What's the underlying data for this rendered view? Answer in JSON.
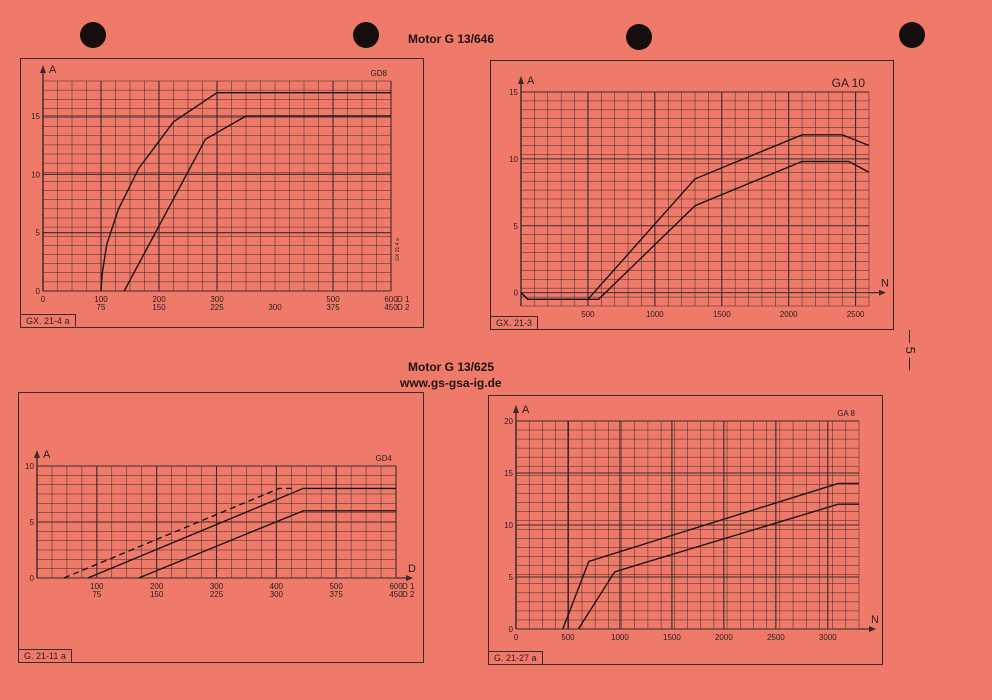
{
  "page": {
    "heading_top": "Motor G 13/646",
    "heading_bottom": "Motor G 13/625",
    "url": "www.gs-gsa-ig.de",
    "page_number": "— 5 —"
  },
  "chart_data": [
    {
      "id": "gx-21-4a",
      "type": "line",
      "title": "GD8",
      "tag": "GX. 21-4 a",
      "side_note": "GX 21-4 a",
      "ylabel": "A",
      "xlabel": "",
      "xlim": [
        0,
        600
      ],
      "ylim": [
        0,
        18
      ],
      "y_ticks": [
        0,
        5,
        10,
        15
      ],
      "x_ticks": [
        0,
        100,
        200,
        300,
        500,
        600
      ],
      "x_ticks2": [
        null,
        75,
        150,
        225,
        300,
        375,
        450
      ],
      "x_ticks2_at": [
        0,
        100,
        200,
        300,
        400,
        500,
        600
      ],
      "x_tick_label_1": "D 1",
      "x_tick_label_2": "D 2",
      "grid": true,
      "series": [
        {
          "dash": false,
          "points": [
            [
              100,
              0
            ],
            [
              102,
              1.5
            ],
            [
              110,
              4
            ],
            [
              130,
              7
            ],
            [
              165,
              10.5
            ],
            [
              225,
              14.5
            ],
            [
              300,
              17
            ],
            [
              600,
              17
            ]
          ]
        },
        {
          "dash": false,
          "points": [
            [
              140,
              0
            ],
            [
              280,
              13
            ],
            [
              350,
              15
            ],
            [
              600,
              15
            ]
          ]
        }
      ]
    },
    {
      "id": "gx-21-3",
      "type": "line",
      "title": "GA 10",
      "tag": "GX. 21-3",
      "ylabel": "A",
      "xlabel": "N",
      "xlim": [
        0,
        2600
      ],
      "ylim": [
        -1,
        15
      ],
      "y_ticks": [
        0,
        5,
        10,
        15
      ],
      "x_ticks": [
        500,
        1000,
        1500,
        2000,
        2500
      ],
      "grid": true,
      "series": [
        {
          "dash": false,
          "points": [
            [
              0,
              0
            ],
            [
              50,
              -0.5
            ],
            [
              500,
              -0.5
            ],
            [
              1300,
              8.5
            ],
            [
              2100,
              11.8
            ],
            [
              2400,
              11.8
            ],
            [
              2600,
              11
            ]
          ]
        },
        {
          "dash": false,
          "points": [
            [
              0,
              0
            ],
            [
              50,
              -0.5
            ],
            [
              580,
              -0.5
            ],
            [
              1300,
              6.5
            ],
            [
              2100,
              9.8
            ],
            [
              2450,
              9.8
            ],
            [
              2600,
              9
            ]
          ]
        }
      ]
    },
    {
      "id": "g-21-11a",
      "type": "line",
      "title": "GD4",
      "tag": "G. 21-11 a",
      "ylabel": "A",
      "xlabel": "D",
      "xlim": [
        0,
        600
      ],
      "ylim": [
        0,
        10
      ],
      "y_ticks": [
        0,
        5,
        10
      ],
      "x_ticks": [
        100,
        200,
        300,
        400,
        500,
        600
      ],
      "x_ticks2": [
        75,
        150,
        225,
        300,
        375,
        450
      ],
      "x_ticks2_at": [
        100,
        200,
        300,
        400,
        500,
        600
      ],
      "x_tick_label_1": "D 1",
      "x_tick_label_2": "D 2",
      "grid": true,
      "series": [
        {
          "dash": true,
          "points": [
            [
              45,
              0
            ],
            [
              405,
              8
            ],
            [
              430,
              8
            ]
          ]
        },
        {
          "dash": false,
          "points": [
            [
              85,
              0
            ],
            [
              445,
              8
            ],
            [
              600,
              8
            ]
          ]
        },
        {
          "dash": false,
          "points": [
            [
              170,
              0
            ],
            [
              445,
              6
            ],
            [
              600,
              6
            ]
          ]
        }
      ]
    },
    {
      "id": "g-21-27a",
      "type": "line",
      "title": "GA 8",
      "tag": "G. 21-27 a",
      "ylabel": "A",
      "xlabel": "N",
      "xlim": [
        0,
        3300
      ],
      "ylim": [
        0,
        20
      ],
      "y_ticks": [
        0,
        5,
        10,
        15,
        20
      ],
      "x_ticks": [
        0,
        500,
        1000,
        1500,
        2000,
        2500,
        3000
      ],
      "grid": true,
      "series": [
        {
          "dash": false,
          "points": [
            [
              450,
              0
            ],
            [
              700,
              6.5
            ],
            [
              3100,
              14
            ],
            [
              3300,
              14
            ]
          ]
        },
        {
          "dash": false,
          "points": [
            [
              600,
              0
            ],
            [
              950,
              5.5
            ],
            [
              3100,
              12
            ],
            [
              3300,
              12
            ]
          ]
        }
      ]
    }
  ]
}
